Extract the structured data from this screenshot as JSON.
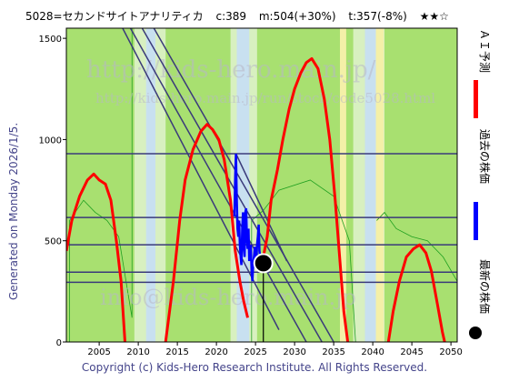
{
  "header": {
    "code_name": "5028=セカンドサイトアナリティカ",
    "current": "c:389",
    "mean": "m:504(+30%)",
    "target": "t:357(-8%)",
    "stars": "★★☆"
  },
  "side_caption": "Generated on Monday 2026/1/5.",
  "watermarks": [
    "http://kids-hero.main.jp/",
    "http://kids-hero.main.jp/run/stock/code5028.html",
    "info@kids-hero.main.jp"
  ],
  "footer": "Copyright (c) Kids-Hero Research Institute. All Rights Reserved.",
  "legend": {
    "ai_label": "ＡＩ予測",
    "past_label": "過去の株価",
    "latest_label": "最新の株価"
  },
  "colors": {
    "ai": "#ff0000",
    "past": "#0000ff",
    "latest": "#000000",
    "lines": "#3a3a7a",
    "bg_green": "#a8e070",
    "bg_light": "#d8f0c0",
    "bg_yellow": "#f4f0a8",
    "bg_blue": "#c8e0f0",
    "thin_green": "#20a020"
  },
  "chart_data": {
    "type": "line",
    "xlim": [
      2000.8,
      2050.8
    ],
    "ylim": [
      0,
      1550
    ],
    "x_ticks": [
      2005,
      2010,
      2015,
      2020,
      2025,
      2030,
      2035,
      2040,
      2045,
      2050
    ],
    "y_ticks": [
      0,
      500,
      1000,
      1500
    ],
    "horizontal_levels": [
      930,
      615,
      480,
      345,
      295
    ],
    "diagonal_lines": [
      {
        "x1": 2008.0,
        "y1": 1550,
        "x2": 2028.0,
        "y2": 60
      },
      {
        "x1": 2009.0,
        "y1": 1550,
        "x2": 2031.5,
        "y2": 0
      },
      {
        "x1": 2010.5,
        "y1": 1550,
        "x2": 2033.5,
        "y2": 0
      },
      {
        "x1": 2012.0,
        "y1": 1550,
        "x2": 2035.0,
        "y2": 0
      },
      {
        "x1": 2022.5,
        "y1": 930,
        "x2": 2029.0,
        "y2": 400
      }
    ],
    "ai_forecast": [
      [
        2000.8,
        450
      ],
      [
        2001.5,
        600
      ],
      [
        2002.5,
        720
      ],
      [
        2003.5,
        800
      ],
      [
        2004.3,
        830
      ],
      [
        2005.0,
        800
      ],
      [
        2005.8,
        780
      ],
      [
        2006.5,
        700
      ],
      [
        2007.2,
        500
      ],
      [
        2007.8,
        300
      ],
      [
        2008.3,
        0
      ],
      [
        2013.5,
        0
      ],
      [
        2014.5,
        300
      ],
      [
        2015.3,
        600
      ],
      [
        2016.0,
        800
      ],
      [
        2017.0,
        950
      ],
      [
        2018.0,
        1040
      ],
      [
        2018.8,
        1075
      ],
      [
        2019.5,
        1050
      ],
      [
        2020.3,
        1000
      ],
      [
        2021.0,
        900
      ],
      [
        2021.8,
        700
      ],
      [
        2022.4,
        450
      ],
      [
        2023.0,
        300
      ],
      [
        2023.5,
        200
      ],
      [
        2024.0,
        120
      ],
      [
        2026.0,
        420
      ],
      [
        2026.5,
        520
      ],
      [
        2027.0,
        700
      ],
      [
        2027.8,
        850
      ],
      [
        2028.5,
        1000
      ],
      [
        2029.3,
        1150
      ],
      [
        2030.0,
        1250
      ],
      [
        2030.8,
        1330
      ],
      [
        2031.5,
        1380
      ],
      [
        2032.2,
        1400
      ],
      [
        2033.0,
        1350
      ],
      [
        2033.8,
        1200
      ],
      [
        2034.5,
        1000
      ],
      [
        2035.2,
        700
      ],
      [
        2035.8,
        400
      ],
      [
        2036.3,
        150
      ],
      [
        2036.8,
        0
      ],
      [
        2042.0,
        0
      ],
      [
        2042.6,
        150
      ],
      [
        2043.4,
        300
      ],
      [
        2044.3,
        420
      ],
      [
        2045.2,
        460
      ],
      [
        2046.0,
        480
      ],
      [
        2046.8,
        440
      ],
      [
        2047.5,
        350
      ],
      [
        2048.3,
        180
      ],
      [
        2048.9,
        50
      ],
      [
        2049.2,
        0
      ]
    ],
    "past_prices": [
      [
        2022.3,
        620
      ],
      [
        2022.4,
        820
      ],
      [
        2022.5,
        930
      ],
      [
        2022.6,
        700
      ],
      [
        2022.7,
        560
      ],
      [
        2022.8,
        520
      ],
      [
        2022.9,
        600
      ],
      [
        2023.0,
        480
      ],
      [
        2023.1,
        420
      ],
      [
        2023.2,
        380
      ],
      [
        2023.3,
        560
      ],
      [
        2023.4,
        640
      ],
      [
        2023.5,
        470
      ],
      [
        2023.6,
        420
      ],
      [
        2023.7,
        640
      ],
      [
        2023.8,
        660
      ],
      [
        2023.9,
        500
      ],
      [
        2024.0,
        460
      ],
      [
        2024.1,
        560
      ],
      [
        2024.2,
        400
      ],
      [
        2024.3,
        430
      ],
      [
        2024.4,
        480
      ],
      [
        2024.5,
        350
      ],
      [
        2024.6,
        300
      ],
      [
        2024.7,
        380
      ],
      [
        2024.8,
        420
      ],
      [
        2024.9,
        470
      ],
      [
        2025.0,
        430
      ],
      [
        2025.1,
        380
      ],
      [
        2025.2,
        480
      ],
      [
        2025.3,
        520
      ],
      [
        2025.4,
        580
      ],
      [
        2025.5,
        450
      ],
      [
        2025.6,
        420
      ],
      [
        2025.7,
        400
      ],
      [
        2025.8,
        389
      ]
    ],
    "latest_price": {
      "x": 2026.0,
      "y": 389
    }
  }
}
